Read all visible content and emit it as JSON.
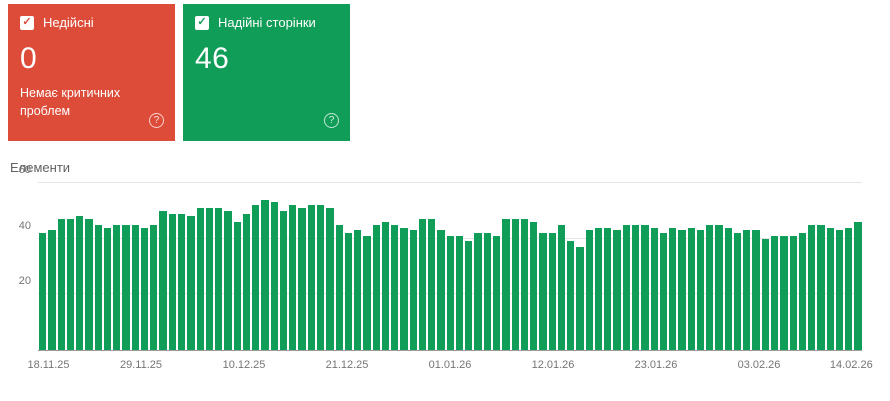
{
  "cards": {
    "invalid": {
      "label": "Недійсні",
      "value": "0",
      "subtext": "Немає критичних проблем",
      "color": "#dd4b39",
      "checked": true
    },
    "valid": {
      "label": "Надійні сторінки",
      "value": "46",
      "color": "#0f9d58",
      "checked": true
    }
  },
  "icons": {
    "check": "✓",
    "help": "?"
  },
  "chart_data": {
    "type": "bar",
    "title": "Елементи",
    "xlabel": "",
    "ylabel": "",
    "ylim": [
      0,
      60
    ],
    "yticks_visible": [
      20,
      40,
      60
    ],
    "grid": true,
    "bar_color": "#0f9d58",
    "x_tick_labels": [
      "18.11.25",
      "29.11.25",
      "10.12.25",
      "21.12.25",
      "01.01.26",
      "12.01.26",
      "23.01.26",
      "03.02.26",
      "14.02.26"
    ],
    "series": [
      {
        "name": "Надійні сторінки",
        "color": "#0f9d58",
        "values": [
          42,
          43,
          47,
          47,
          48,
          47,
          45,
          44,
          45,
          45,
          45,
          44,
          45,
          50,
          49,
          49,
          48,
          51,
          51,
          51,
          50,
          46,
          49,
          52,
          54,
          53,
          50,
          52,
          51,
          52,
          52,
          51,
          45,
          42,
          43,
          41,
          45,
          46,
          45,
          44,
          43,
          47,
          47,
          43,
          41,
          41,
          39,
          42,
          42,
          41,
          47,
          47,
          47,
          46,
          42,
          42,
          45,
          39,
          37,
          43,
          44,
          44,
          43,
          45,
          45,
          45,
          44,
          42,
          44,
          43,
          44,
          43,
          45,
          45,
          44,
          42,
          43,
          43,
          40,
          41,
          41,
          41,
          42,
          45,
          45,
          44,
          43,
          44,
          46
        ]
      }
    ]
  }
}
